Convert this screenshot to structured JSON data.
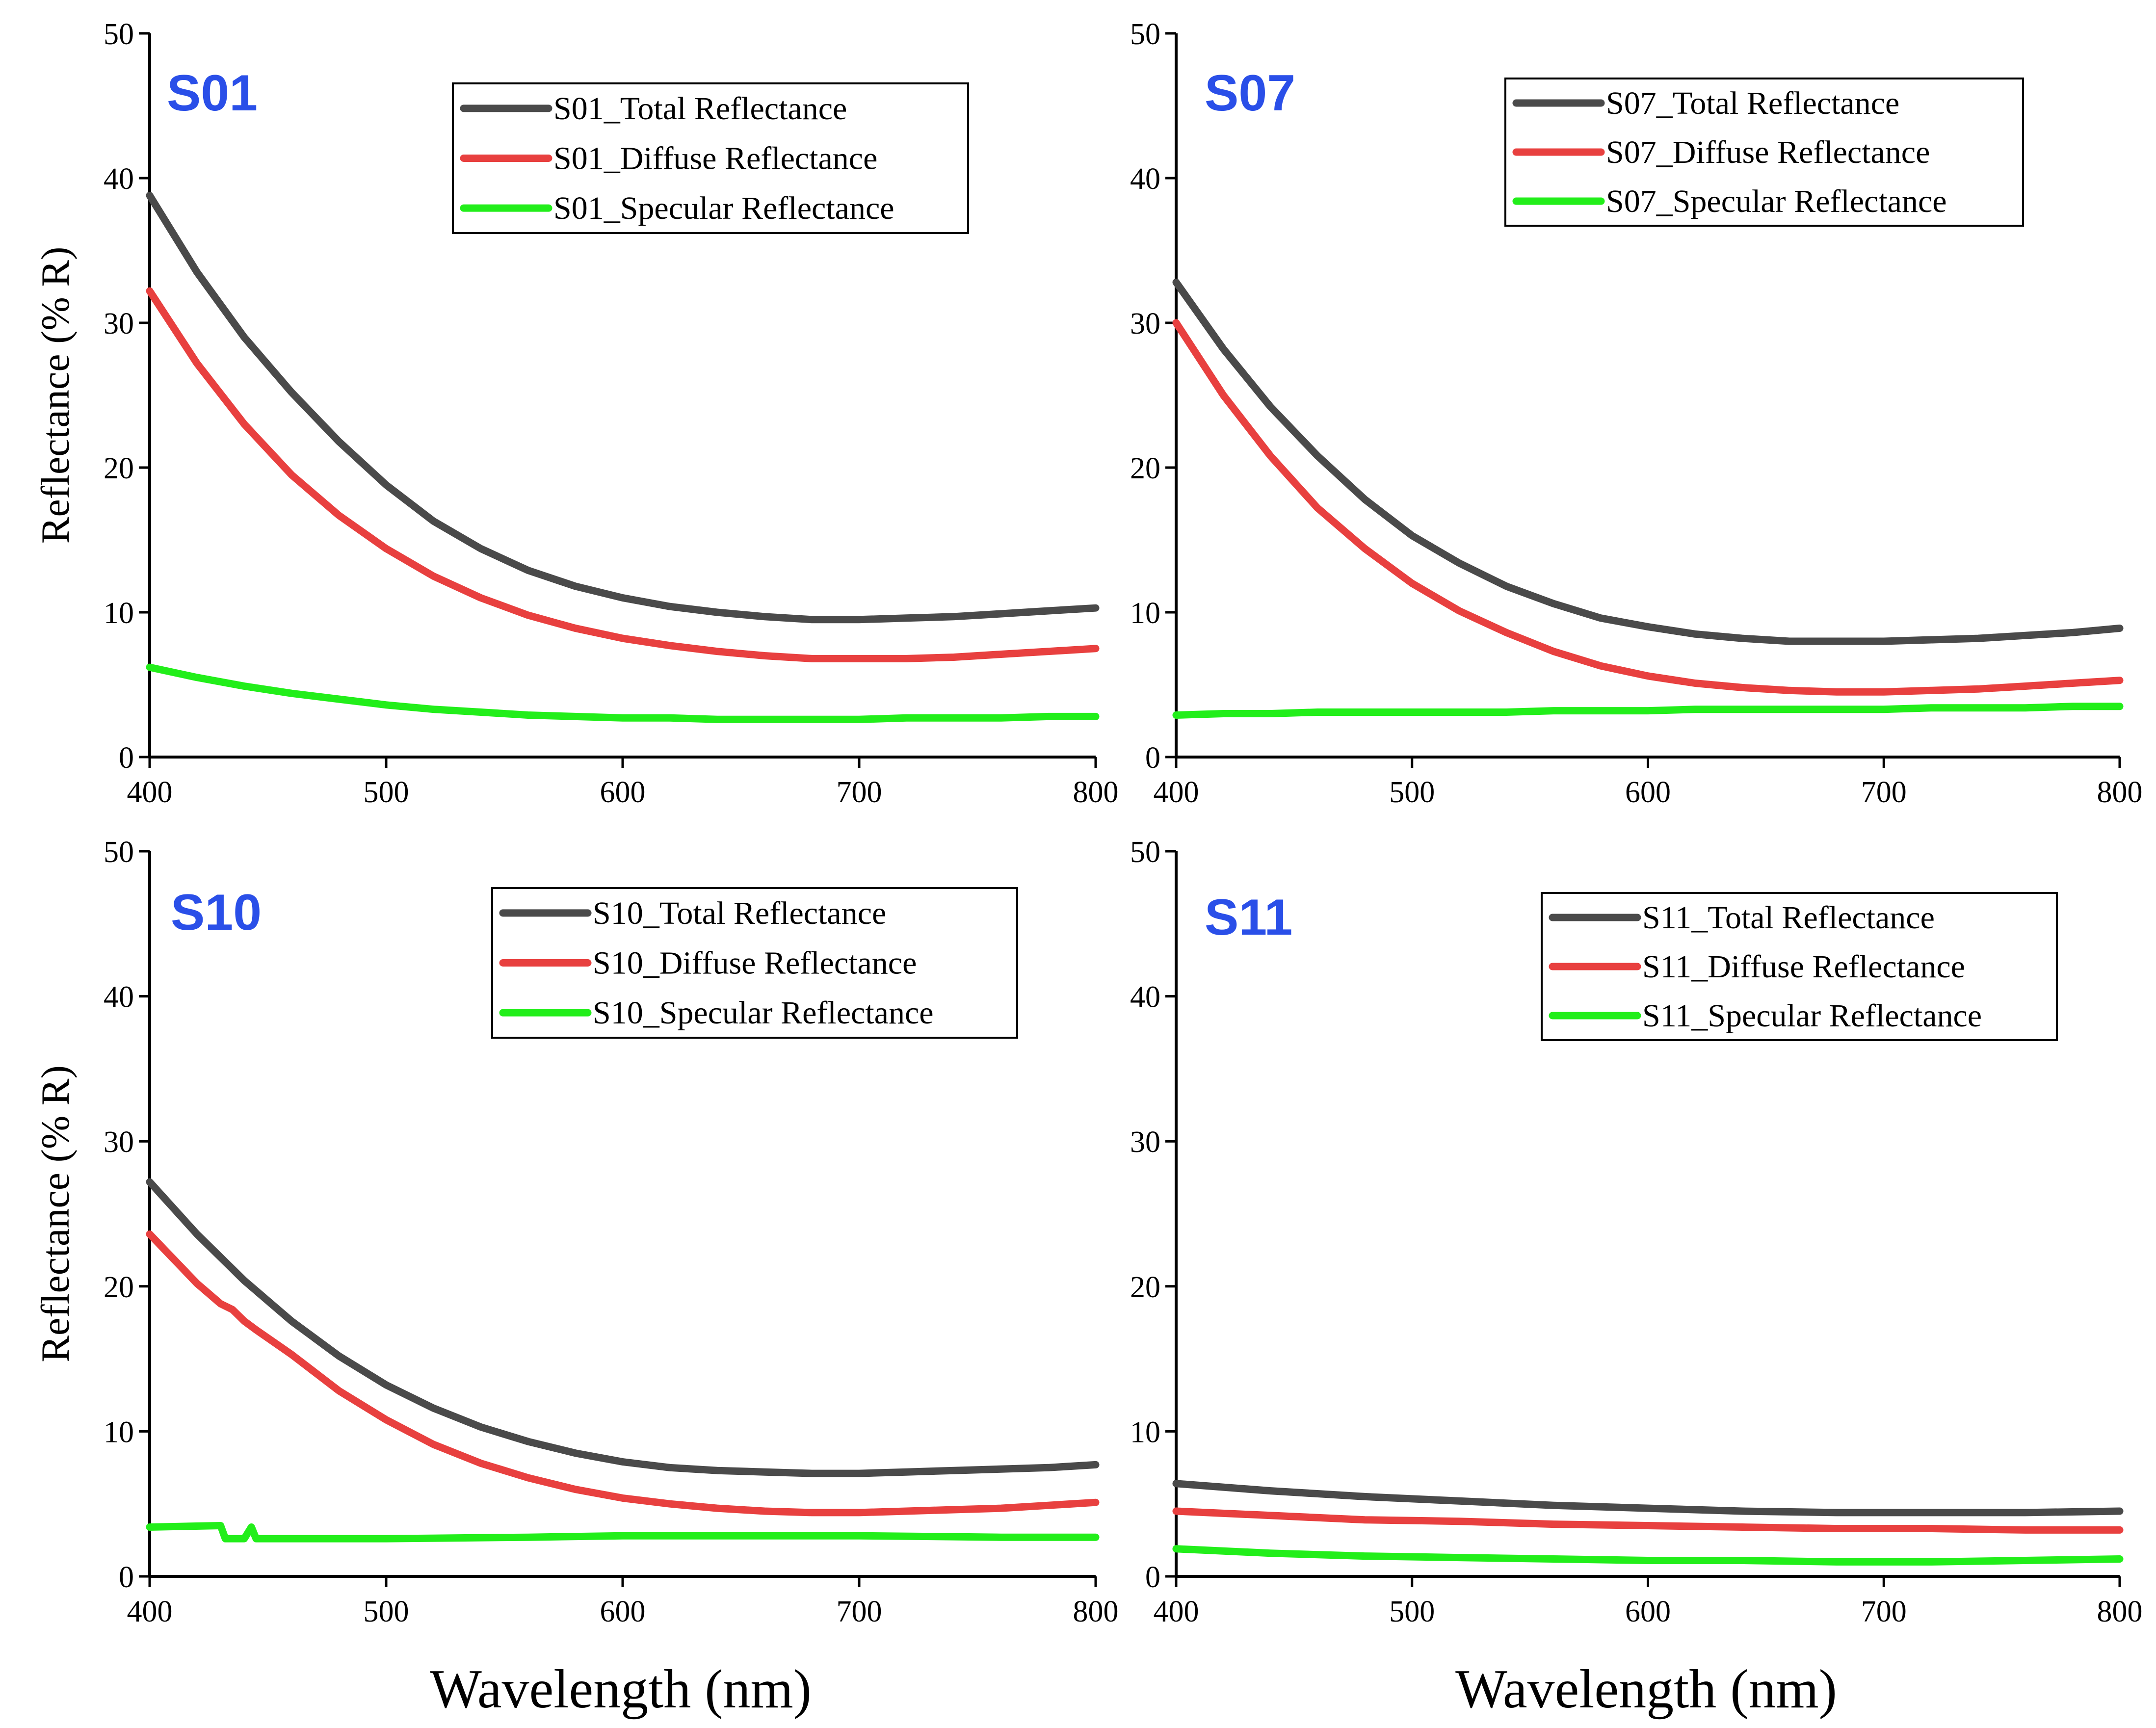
{
  "figure": {
    "xlabel": "Wavelength (nm)",
    "ylabel": "Reflectance (% R)"
  },
  "colors": {
    "total": "#4a4a4a",
    "diffuse": "#e8403f",
    "specular": "#22ee1a",
    "panel_label": "#2a4fe8"
  },
  "chart_data": [
    {
      "type": "line",
      "title": "S01",
      "xlabel": "",
      "ylabel": "Reflectance (% R)",
      "xlim": [
        400,
        800
      ],
      "ylim": [
        0,
        50
      ],
      "xticks": [
        400,
        500,
        600,
        700,
        800
      ],
      "yticks": [
        0,
        10,
        20,
        30,
        40,
        50
      ],
      "legend_position": "top-right",
      "series": [
        {
          "name": "S01_Total Reflectance",
          "color_key": "total",
          "x": [
            400,
            420,
            440,
            460,
            480,
            500,
            520,
            540,
            560,
            580,
            600,
            620,
            640,
            660,
            680,
            700,
            720,
            740,
            760,
            780,
            800
          ],
          "y": [
            38.8,
            33.5,
            29.0,
            25.2,
            21.8,
            18.8,
            16.3,
            14.4,
            12.9,
            11.8,
            11.0,
            10.4,
            10.0,
            9.7,
            9.5,
            9.5,
            9.6,
            9.7,
            9.9,
            10.1,
            10.3
          ]
        },
        {
          "name": "S01_Diffuse Reflectance",
          "color_key": "diffuse",
          "x": [
            400,
            420,
            440,
            460,
            480,
            500,
            520,
            540,
            560,
            580,
            600,
            620,
            640,
            660,
            680,
            700,
            720,
            740,
            760,
            780,
            800
          ],
          "y": [
            32.2,
            27.2,
            23.0,
            19.5,
            16.7,
            14.4,
            12.5,
            11.0,
            9.8,
            8.9,
            8.2,
            7.7,
            7.3,
            7.0,
            6.8,
            6.8,
            6.8,
            6.9,
            7.1,
            7.3,
            7.5
          ]
        },
        {
          "name": "S01_Specular Reflectance",
          "color_key": "specular",
          "x": [
            400,
            420,
            440,
            460,
            480,
            500,
            520,
            540,
            560,
            580,
            600,
            620,
            640,
            660,
            680,
            700,
            720,
            740,
            760,
            780,
            800
          ],
          "y": [
            6.2,
            5.5,
            4.9,
            4.4,
            4.0,
            3.6,
            3.3,
            3.1,
            2.9,
            2.8,
            2.7,
            2.7,
            2.6,
            2.6,
            2.6,
            2.6,
            2.7,
            2.7,
            2.7,
            2.8,
            2.8
          ]
        }
      ]
    },
    {
      "type": "line",
      "title": "S07",
      "xlabel": "",
      "ylabel": "",
      "xlim": [
        400,
        800
      ],
      "ylim": [
        0,
        50
      ],
      "xticks": [
        400,
        500,
        600,
        700,
        800
      ],
      "yticks": [
        0,
        10,
        20,
        30,
        40,
        50
      ],
      "legend_position": "top-right",
      "series": [
        {
          "name": "S07_Total Reflectance",
          "color_key": "total",
          "x": [
            400,
            420,
            440,
            460,
            480,
            500,
            520,
            540,
            560,
            580,
            600,
            620,
            640,
            660,
            680,
            700,
            720,
            740,
            760,
            780,
            800
          ],
          "y": [
            32.8,
            28.2,
            24.2,
            20.8,
            17.8,
            15.3,
            13.4,
            11.8,
            10.6,
            9.6,
            9.0,
            8.5,
            8.2,
            8.0,
            8.0,
            8.0,
            8.1,
            8.2,
            8.4,
            8.6,
            8.9
          ]
        },
        {
          "name": "S07_Diffuse Reflectance",
          "color_key": "diffuse",
          "x": [
            400,
            420,
            440,
            460,
            480,
            500,
            520,
            540,
            560,
            580,
            600,
            620,
            640,
            660,
            680,
            700,
            720,
            740,
            760,
            780,
            800
          ],
          "y": [
            30.0,
            25.0,
            20.8,
            17.2,
            14.4,
            12.0,
            10.1,
            8.6,
            7.3,
            6.3,
            5.6,
            5.1,
            4.8,
            4.6,
            4.5,
            4.5,
            4.6,
            4.7,
            4.9,
            5.1,
            5.3
          ]
        },
        {
          "name": "S07_Specular Reflectance",
          "color_key": "specular",
          "x": [
            400,
            420,
            440,
            460,
            480,
            500,
            520,
            540,
            560,
            580,
            600,
            620,
            640,
            660,
            680,
            700,
            720,
            740,
            760,
            780,
            800
          ],
          "y": [
            2.9,
            3.0,
            3.0,
            3.1,
            3.1,
            3.1,
            3.1,
            3.1,
            3.2,
            3.2,
            3.2,
            3.3,
            3.3,
            3.3,
            3.3,
            3.3,
            3.4,
            3.4,
            3.4,
            3.5,
            3.5
          ]
        }
      ]
    },
    {
      "type": "line",
      "title": "S10",
      "xlabel": "Wavelength (nm)",
      "ylabel": "Reflectance (% R)",
      "xlim": [
        400,
        800
      ],
      "ylim": [
        0,
        50
      ],
      "xticks": [
        400,
        500,
        600,
        700,
        800
      ],
      "yticks": [
        0,
        10,
        20,
        30,
        40,
        50
      ],
      "legend_position": "top-right",
      "series": [
        {
          "name": "S10_Total Reflectance",
          "color_key": "total",
          "x": [
            400,
            420,
            440,
            460,
            480,
            500,
            520,
            540,
            560,
            580,
            600,
            620,
            640,
            660,
            680,
            700,
            720,
            740,
            760,
            780,
            800
          ],
          "y": [
            27.2,
            23.6,
            20.4,
            17.6,
            15.2,
            13.2,
            11.6,
            10.3,
            9.3,
            8.5,
            7.9,
            7.5,
            7.3,
            7.2,
            7.1,
            7.1,
            7.2,
            7.3,
            7.4,
            7.5,
            7.7
          ]
        },
        {
          "name": "S10_Diffuse Reflectance",
          "color_key": "diffuse",
          "x": [
            400,
            420,
            430,
            435,
            440,
            445,
            460,
            480,
            500,
            520,
            540,
            560,
            580,
            600,
            620,
            640,
            660,
            680,
            700,
            720,
            740,
            760,
            780,
            800
          ],
          "y": [
            23.6,
            20.2,
            18.8,
            18.4,
            17.6,
            17.0,
            15.3,
            12.8,
            10.8,
            9.1,
            7.8,
            6.8,
            6.0,
            5.4,
            5.0,
            4.7,
            4.5,
            4.4,
            4.4,
            4.5,
            4.6,
            4.7,
            4.9,
            5.1
          ]
        },
        {
          "name": "S10_Specular Reflectance",
          "color_key": "specular",
          "x": [
            400,
            430,
            432,
            440,
            443,
            445,
            500,
            560,
            600,
            640,
            700,
            760,
            800
          ],
          "y": [
            3.4,
            3.5,
            2.6,
            2.6,
            3.4,
            2.6,
            2.6,
            2.7,
            2.8,
            2.8,
            2.8,
            2.7,
            2.7
          ]
        }
      ]
    },
    {
      "type": "line",
      "title": "S11",
      "xlabel": "Wavelength (nm)",
      "ylabel": "",
      "xlim": [
        400,
        800
      ],
      "ylim": [
        0,
        50
      ],
      "xticks": [
        400,
        500,
        600,
        700,
        800
      ],
      "yticks": [
        0,
        10,
        20,
        30,
        40,
        50
      ],
      "legend_position": "top-right",
      "series": [
        {
          "name": "S11_Total Reflectance",
          "color_key": "total",
          "x": [
            400,
            440,
            480,
            520,
            560,
            600,
            640,
            680,
            720,
            760,
            800
          ],
          "y": [
            6.4,
            5.9,
            5.5,
            5.2,
            4.9,
            4.7,
            4.5,
            4.4,
            4.4,
            4.4,
            4.5
          ]
        },
        {
          "name": "S11_Diffuse Reflectance",
          "color_key": "diffuse",
          "x": [
            400,
            440,
            480,
            520,
            560,
            600,
            640,
            680,
            720,
            760,
            800
          ],
          "y": [
            4.5,
            4.2,
            3.9,
            3.8,
            3.6,
            3.5,
            3.4,
            3.3,
            3.3,
            3.2,
            3.2
          ]
        },
        {
          "name": "S11_Specular Reflectance",
          "color_key": "specular",
          "x": [
            400,
            440,
            480,
            520,
            560,
            600,
            640,
            680,
            720,
            760,
            800
          ],
          "y": [
            1.9,
            1.6,
            1.4,
            1.3,
            1.2,
            1.1,
            1.1,
            1.0,
            1.0,
            1.1,
            1.2
          ]
        }
      ]
    }
  ]
}
